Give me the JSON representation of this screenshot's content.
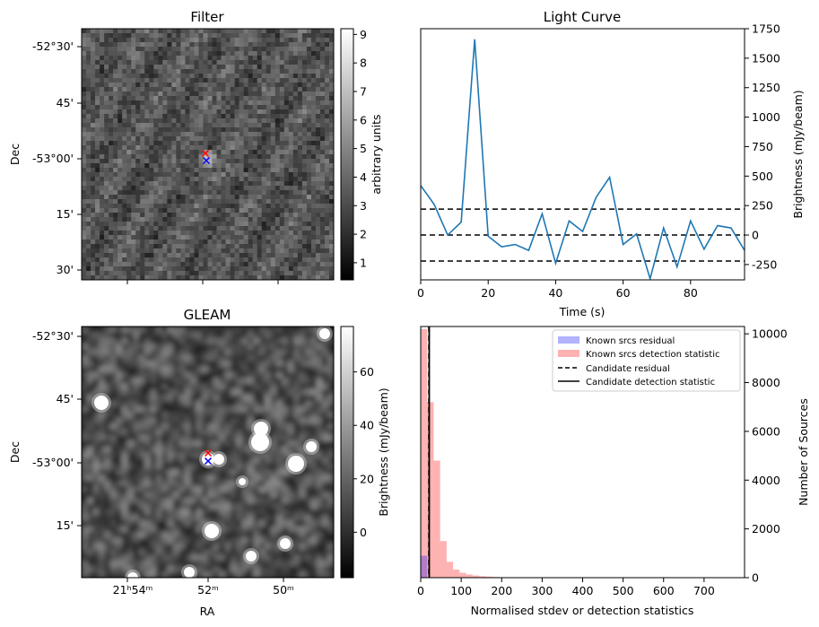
{
  "chart_data": [
    {
      "type": "heatmap",
      "title": "Filter",
      "ylabel": "Dec",
      "yticks": [
        "-52°30'",
        "45'",
        "-53°00'",
        "15'",
        "30'"
      ],
      "colorbar": {
        "label": "arbitrary units",
        "ticks": [
          1,
          2,
          3,
          4,
          5,
          6,
          7,
          8,
          9
        ],
        "range": [
          0.4,
          9.2
        ],
        "cmap": "gray"
      },
      "markers": [
        {
          "symbol": "x",
          "color": "#ff0000"
        },
        {
          "symbol": "x",
          "color": "#0000ff"
        }
      ]
    },
    {
      "type": "line",
      "title": "Light Curve",
      "xlabel": "Time (s)",
      "ylabel": "Brightness (mJy/beam)",
      "xlim": [
        0,
        96
      ],
      "ylim": [
        -380,
        1750
      ],
      "xticks": [
        0,
        20,
        40,
        60,
        80
      ],
      "yticks": [
        -250,
        0,
        250,
        500,
        750,
        1000,
        1250,
        1500,
        1750
      ],
      "y_axis_side": "right",
      "series": [
        {
          "color": "#1f77b4",
          "x": [
            0,
            4,
            8,
            12,
            16,
            20,
            24,
            28,
            32,
            36,
            40,
            44,
            48,
            52,
            56,
            60,
            64,
            68,
            72,
            76,
            80,
            84,
            88,
            92,
            96
          ],
          "y": [
            420,
            260,
            0,
            110,
            1660,
            -10,
            -100,
            -80,
            -130,
            180,
            -240,
            120,
            30,
            320,
            490,
            -80,
            10,
            -370,
            60,
            -270,
            120,
            -120,
            80,
            60,
            -130
          ]
        }
      ],
      "hlines": [
        {
          "y": 220,
          "style": "dashed"
        },
        {
          "y": 0,
          "style": "dashed"
        },
        {
          "y": -220,
          "style": "dashed"
        }
      ]
    },
    {
      "type": "heatmap",
      "title": "GLEAM",
      "xlabel": "RA",
      "ylabel": "Dec",
      "xticks": [
        "21ʰ54ᵐ",
        "52ᵐ",
        "50ᵐ"
      ],
      "yticks": [
        "-52°30'",
        "45'",
        "-53°00'",
        "15'"
      ],
      "colorbar": {
        "label": "Brightness (mJy/beam)",
        "ticks": [
          0,
          20,
          40,
          60
        ],
        "range": [
          -17,
          77
        ],
        "cmap": "gray"
      },
      "markers": [
        {
          "symbol": "x",
          "color": "#ff0000"
        },
        {
          "symbol": "x",
          "color": "#0000ff"
        }
      ]
    },
    {
      "type": "bar",
      "xlabel": "Normalised stdev or detection statistics",
      "ylabel": "Number of Sources",
      "xlim": [
        0,
        800
      ],
      "ylim": [
        0,
        10300
      ],
      "xticks": [
        0,
        100,
        200,
        300,
        400,
        500,
        600,
        700
      ],
      "yticks": [
        0,
        2000,
        4000,
        6000,
        8000,
        10000
      ],
      "y_axis_side": "right",
      "bin_width": 16,
      "series": [
        {
          "name": "Known srcs residual",
          "color": "#0000ff",
          "alpha": 0.3,
          "bins": [
            0
          ],
          "counts": [
            900
          ]
        },
        {
          "name": "Known srcs detection statistic",
          "color": "#ff0000",
          "alpha": 0.3,
          "bins": [
            0,
            16,
            32,
            48,
            64,
            80,
            96,
            112,
            128,
            144,
            160,
            176,
            192,
            208,
            224,
            240,
            256
          ],
          "counts": [
            10200,
            7200,
            4800,
            1500,
            650,
            330,
            200,
            130,
            90,
            60,
            45,
            30,
            20,
            15,
            10,
            8,
            5
          ]
        },
        {
          "name": "Candidate residual",
          "style": "dashed",
          "color": "#000000",
          "x": 20
        },
        {
          "name": "Candidate detection statistic",
          "style": "solid",
          "color": "#000000",
          "x": 21
        }
      ],
      "legend": "top-right"
    }
  ]
}
